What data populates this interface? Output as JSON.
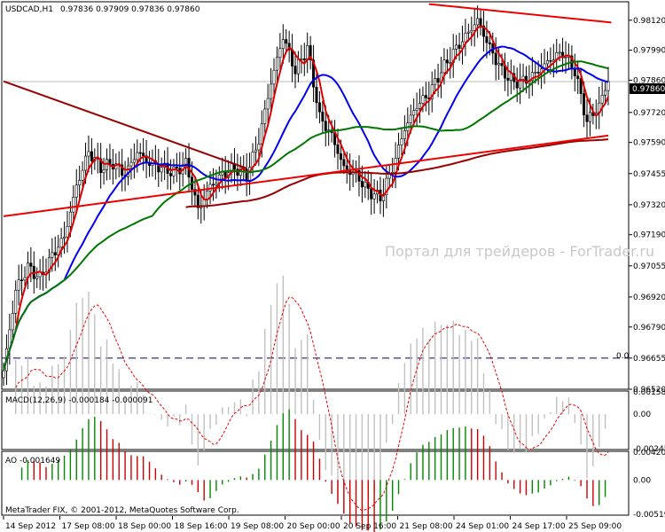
{
  "header": {
    "symbol": "USDCAD,H1",
    "ohlc": "0.97836 0.97909 0.97836 0.97860"
  },
  "watermark": "Портал для трейдеров - ForTrader.ru",
  "footer": "MetaTrader FIX, © 2001-2012, MetaQuotes Software Corp.",
  "price_tag": "0.97860",
  "hline_label": "0.0",
  "colors": {
    "bull": "#000000",
    "ma_fast": "#dd0000",
    "ma_mid": "#0000ee",
    "ma_slow": "#007700",
    "ma_long": "#990000",
    "trendline": "#ee0000",
    "macd_hist": "#c0c0c0",
    "macd_signal": "#ee0000",
    "ao_up": "#008800",
    "ao_down": "#cc0000"
  },
  "chart_data": [
    {
      "type": "candlestick",
      "title": "USDCAD,H1",
      "price_ticks": [
        "0.98120",
        "0.97990",
        "0.97860",
        "0.97720",
        "0.97590",
        "0.97455",
        "0.97320",
        "0.97190",
        "0.97055",
        "0.96920",
        "0.96790",
        "0.96655",
        "0.96520"
      ],
      "ylim": [
        0.9652,
        0.982
      ],
      "x_labels": [
        "14 Sep 2012",
        "17 Sep 08:00",
        "18 Sep 00:00",
        "18 Sep 16:00",
        "19 Sep 08:00",
        "20 Sep 00:00",
        "20 Sep 16:00",
        "21 Sep 08:00",
        "24 Sep 01:00",
        "24 Sep 17:00",
        "25 Sep 09:00"
      ],
      "close_anchors": [
        [
          0,
          0.966
        ],
        [
          4,
          0.9695
        ],
        [
          8,
          0.9705
        ],
        [
          12,
          0.97
        ],
        [
          16,
          0.971
        ],
        [
          20,
          0.9718
        ],
        [
          24,
          0.974
        ],
        [
          28,
          0.9755
        ],
        [
          32,
          0.9748
        ],
        [
          36,
          0.975
        ],
        [
          40,
          0.9745
        ],
        [
          44,
          0.9755
        ],
        [
          48,
          0.975
        ],
        [
          52,
          0.9748
        ],
        [
          56,
          0.9746
        ],
        [
          60,
          0.975
        ],
        [
          64,
          0.973
        ],
        [
          68,
          0.974
        ],
        [
          72,
          0.9745
        ],
        [
          76,
          0.9748
        ],
        [
          80,
          0.9745
        ],
        [
          84,
          0.976
        ],
        [
          88,
          0.9785
        ],
        [
          92,
          0.9805
        ],
        [
          96,
          0.979
        ],
        [
          100,
          0.98
        ],
        [
          104,
          0.977
        ],
        [
          108,
          0.9762
        ],
        [
          112,
          0.9748
        ],
        [
          116,
          0.9745
        ],
        [
          120,
          0.9738
        ],
        [
          124,
          0.9735
        ],
        [
          128,
          0.9748
        ],
        [
          132,
          0.9765
        ],
        [
          136,
          0.9775
        ],
        [
          140,
          0.978
        ],
        [
          144,
          0.979
        ],
        [
          148,
          0.9798
        ],
        [
          152,
          0.9805
        ],
        [
          156,
          0.9812
        ],
        [
          160,
          0.98
        ],
        [
          164,
          0.979
        ],
        [
          168,
          0.9785
        ],
        [
          172,
          0.9786
        ],
        [
          176,
          0.979
        ],
        [
          180,
          0.9795
        ],
        [
          184,
          0.9798
        ],
        [
          188,
          0.979
        ],
        [
          192,
          0.9768
        ],
        [
          196,
          0.9775
        ],
        [
          199,
          0.9786
        ]
      ],
      "moving_averages": [
        {
          "name": "ma_fast",
          "period": 5
        },
        {
          "name": "ma_mid",
          "period": 21
        },
        {
          "name": "ma_slow",
          "period": 50
        },
        {
          "name": "ma_long",
          "period": 200
        }
      ],
      "trendlines": [
        {
          "x": [
            0,
            199
          ],
          "y": [
            0.9727,
            0.9762
          ]
        },
        {
          "x": [
            140,
            200
          ],
          "y": [
            0.9819,
            0.9811
          ]
        },
        {
          "x": [
            0,
            80
          ],
          "y": [
            0.97855,
            0.97478
          ]
        }
      ],
      "hline": 0.96655
    },
    {
      "type": "bar",
      "title": "MACD(12,26,9) -0.000184 -0.000091",
      "y_ticks": [
        "0.001582",
        "0.00",
        "-0.00245"
      ],
      "ylim": [
        -0.00245,
        0.00158
      ]
    },
    {
      "type": "bar",
      "title": "AO -0.001649",
      "y_ticks": [
        "0.004206",
        "0.00",
        "-0.00519"
      ],
      "ylim": [
        -0.00519,
        0.00421
      ]
    }
  ]
}
